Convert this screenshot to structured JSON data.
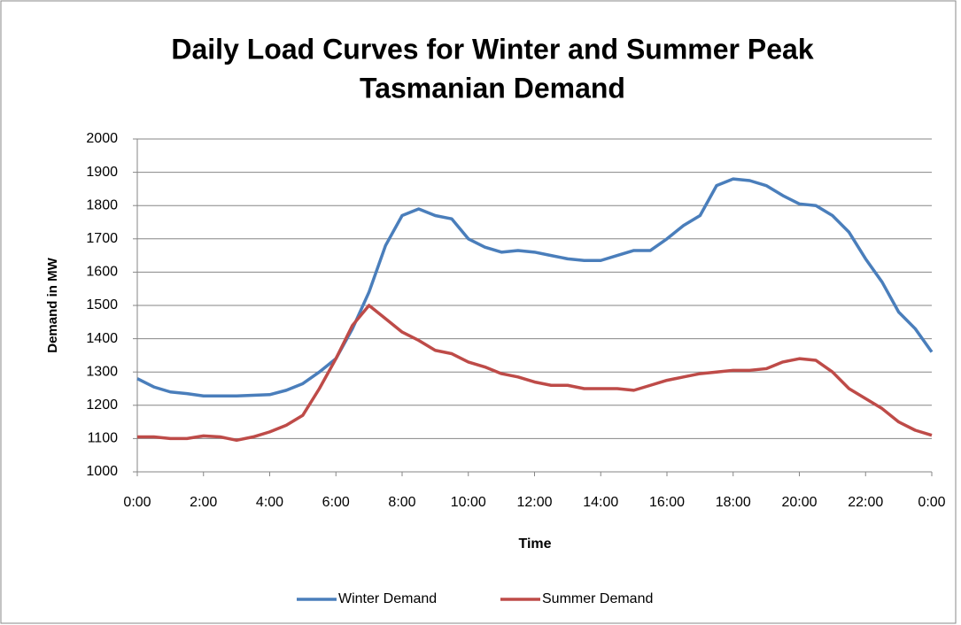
{
  "chart_data": {
    "type": "line",
    "title": [
      "Daily Load Curves for Winter and Summer Peak",
      "Tasmanian Demand"
    ],
    "x_label": "Time",
    "y_label": "Demand in MW",
    "x": [
      0,
      0.5,
      1,
      1.5,
      2,
      2.5,
      3,
      3.5,
      4,
      4.5,
      5,
      5.5,
      6,
      6.5,
      7,
      7.5,
      8,
      8.5,
      9,
      9.5,
      10,
      10.5,
      11,
      11.5,
      12,
      12.5,
      13,
      13.5,
      14,
      14.5,
      15,
      15.5,
      16,
      16.5,
      17,
      17.5,
      18,
      18.5,
      19,
      19.5,
      20,
      20.5,
      21,
      21.5,
      22,
      22.5,
      23,
      23.5,
      24
    ],
    "series": [
      {
        "name": "Winter Demand",
        "color": "#4a7ebb",
        "values": [
          1280,
          1255,
          1240,
          1235,
          1228,
          1228,
          1228,
          1230,
          1232,
          1245,
          1265,
          1300,
          1340,
          1430,
          1540,
          1680,
          1770,
          1790,
          1770,
          1760,
          1700,
          1675,
          1660,
          1665,
          1660,
          1650,
          1640,
          1635,
          1635,
          1650,
          1665,
          1665,
          1700,
          1740,
          1770,
          1860,
          1880,
          1875,
          1860,
          1830,
          1805,
          1800,
          1770,
          1720,
          1640,
          1570,
          1480,
          1430,
          1360
        ]
      },
      {
        "name": "Summer Demand",
        "color": "#be4b48",
        "values": [
          1105,
          1105,
          1100,
          1100,
          1108,
          1105,
          1095,
          1105,
          1120,
          1140,
          1170,
          1250,
          1340,
          1440,
          1500,
          1460,
          1420,
          1395,
          1365,
          1355,
          1330,
          1315,
          1295,
          1285,
          1270,
          1260,
          1260,
          1250,
          1250,
          1250,
          1245,
          1260,
          1275,
          1285,
          1295,
          1300,
          1305,
          1305,
          1310,
          1330,
          1340,
          1335,
          1300,
          1250,
          1220,
          1190,
          1150,
          1125,
          1110
        ]
      }
    ],
    "xlim": [
      0,
      24
    ],
    "xticks": [
      {
        "value": 0,
        "label": "0:00"
      },
      {
        "value": 2,
        "label": "2:00"
      },
      {
        "value": 4,
        "label": "4:00"
      },
      {
        "value": 6,
        "label": "6:00"
      },
      {
        "value": 8,
        "label": "8:00"
      },
      {
        "value": 10,
        "label": "10:00"
      },
      {
        "value": 12,
        "label": "12:00"
      },
      {
        "value": 14,
        "label": "14:00"
      },
      {
        "value": 16,
        "label": "16:00"
      },
      {
        "value": 18,
        "label": "18:00"
      },
      {
        "value": 20,
        "label": "20:00"
      },
      {
        "value": 22,
        "label": "22:00"
      },
      {
        "value": 24,
        "label": "0:00"
      }
    ],
    "ylim": [
      1000,
      2000
    ],
    "yticks": [
      1000,
      1100,
      1200,
      1300,
      1400,
      1500,
      1600,
      1700,
      1800,
      1900,
      2000
    ],
    "grid": true,
    "legend": "bottom"
  }
}
